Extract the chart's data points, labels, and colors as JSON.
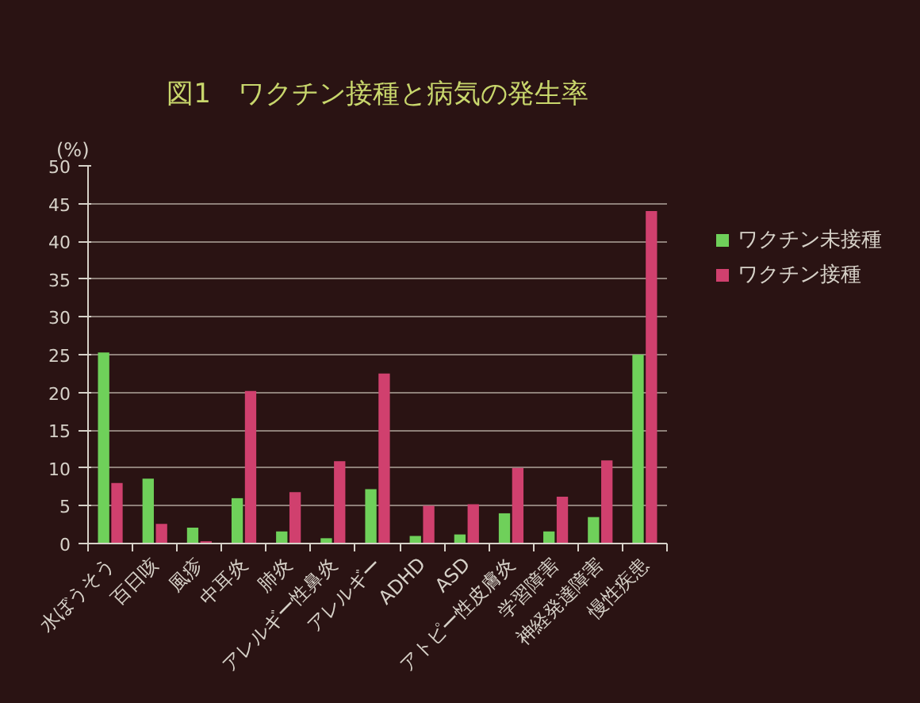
{
  "chart_data": {
    "type": "bar",
    "title": "図1　ワクチン接種と病気の発生率",
    "ylabel": "(%)",
    "categories": [
      "水ぼうそう",
      "百日咳",
      "風疹",
      "中耳炎",
      "肺炎",
      "アレルギー性鼻炎",
      "アレルギー",
      "ADHD",
      "ASD",
      "アトピー性皮膚炎",
      "学習障害",
      "神経発達障害",
      "慢性疾患"
    ],
    "series": [
      {
        "name": "ワクチン未接種",
        "color": "#6fd05a",
        "values": [
          25.3,
          8.6,
          2.1,
          6.0,
          1.6,
          0.7,
          7.2,
          1.0,
          1.2,
          4.0,
          1.6,
          3.5,
          25
        ]
      },
      {
        "name": "ワクチン接種",
        "color": "#d0406e",
        "values": [
          8,
          2.6,
          0.3,
          20.2,
          6.8,
          10.9,
          22.5,
          5.0,
          5.2,
          10,
          6.2,
          11,
          44
        ]
      }
    ],
    "ylim": [
      0,
      50
    ],
    "yticks": [
      0,
      5,
      10,
      15,
      20,
      25,
      30,
      35,
      40,
      45,
      50
    ],
    "grid": "y",
    "legend": "right"
  }
}
